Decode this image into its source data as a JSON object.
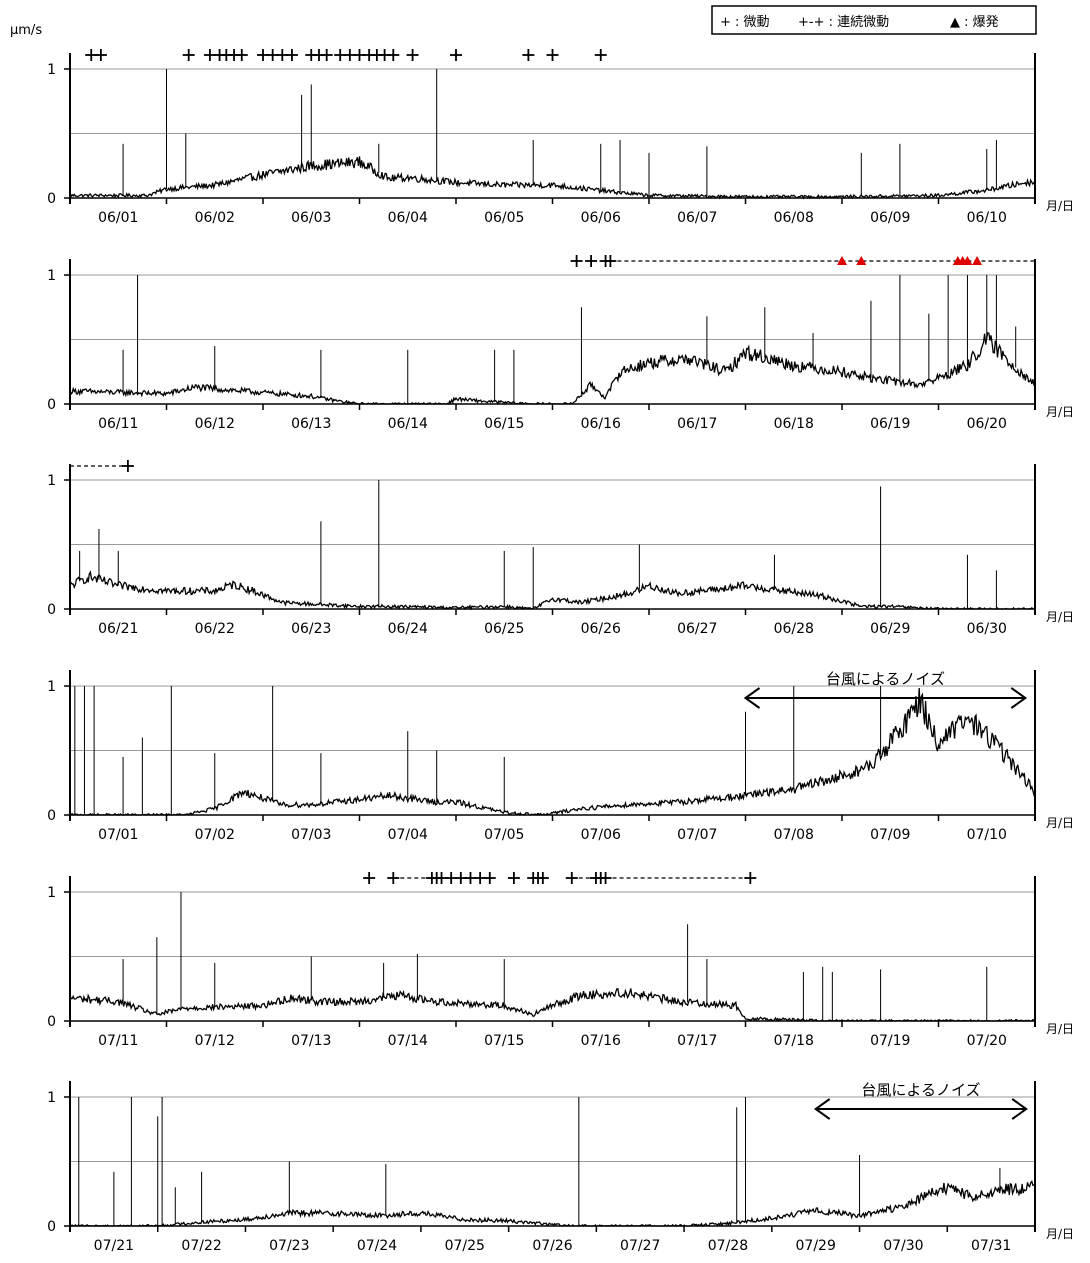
{
  "unit_label": "μm/s",
  "x_unit_label": "月/日",
  "legend": {
    "tremor_label": "+ : 微動",
    "continuous_label": "+-+ : 連続微動",
    "eruption_label": "▲ : 爆発",
    "eruption_color": "#e00000"
  },
  "colors": {
    "trace": "#000000",
    "grid": "#9a9a9a",
    "axis": "#000000",
    "eruption": "#e00000"
  },
  "chart_data": [
    {
      "type": "line",
      "categories": [
        "06/01",
        "06/02",
        "06/03",
        "06/04",
        "06/05",
        "06/06",
        "06/07",
        "06/08",
        "06/09",
        "06/10"
      ],
      "ylim": [
        0,
        1
      ],
      "yticks": [
        0,
        1
      ],
      "grid": [
        0.5,
        1
      ],
      "trace": [
        [
          0,
          0.02
        ],
        [
          0.8,
          0.02
        ],
        [
          1.0,
          0.07
        ],
        [
          1.5,
          0.1
        ],
        [
          2.0,
          0.18
        ],
        [
          2.5,
          0.25
        ],
        [
          3.0,
          0.28
        ],
        [
          3.3,
          0.15
        ],
        [
          3.5,
          0.16
        ],
        [
          4.0,
          0.12
        ],
        [
          4.5,
          0.1
        ],
        [
          5.0,
          0.1
        ],
        [
          5.6,
          0.05
        ],
        [
          6.0,
          0.02
        ],
        [
          7.0,
          0.01
        ],
        [
          8.0,
          0.01
        ],
        [
          9.0,
          0.02
        ],
        [
          9.5,
          0.06
        ],
        [
          9.9,
          0.12
        ],
        [
          10,
          0.12
        ]
      ],
      "spikes": [
        [
          0.55,
          0.42
        ],
        [
          1.0,
          1.0
        ],
        [
          1.2,
          0.5
        ],
        [
          2.4,
          0.8
        ],
        [
          2.5,
          0.88
        ],
        [
          3.2,
          0.42
        ],
        [
          3.8,
          1.0
        ],
        [
          4.8,
          0.45
        ],
        [
          5.5,
          0.42
        ],
        [
          5.7,
          0.45
        ],
        [
          6.0,
          0.35
        ],
        [
          6.6,
          0.4
        ],
        [
          8.2,
          0.35
        ],
        [
          8.6,
          0.42
        ],
        [
          9.5,
          0.38
        ],
        [
          9.6,
          0.45
        ]
      ],
      "tremors": [
        0.22,
        0.32,
        1.23,
        1.45,
        1.55,
        1.62,
        1.7,
        1.78,
        2.0,
        2.1,
        2.2,
        2.3,
        2.5,
        2.58,
        2.66,
        2.8,
        2.9,
        3.0,
        3.1,
        3.18,
        3.26,
        3.35,
        3.55,
        4.0,
        4.75,
        5.0,
        5.5
      ],
      "continuous": [],
      "eruptions": []
    },
    {
      "type": "line",
      "categories": [
        "06/11",
        "06/12",
        "06/13",
        "06/14",
        "06/15",
        "06/16",
        "06/17",
        "06/18",
        "06/19",
        "06/20"
      ],
      "ylim": [
        0,
        1
      ],
      "yticks": [
        0,
        1
      ],
      "grid": [
        0.5,
        1
      ],
      "trace": [
        [
          0,
          0.1
        ],
        [
          1.0,
          0.08
        ],
        [
          1.3,
          0.13
        ],
        [
          1.8,
          0.1
        ],
        [
          2.5,
          0.06
        ],
        [
          2.8,
          0.02
        ],
        [
          3.0,
          0.0
        ],
        [
          3.9,
          0.0
        ],
        [
          4.0,
          0.04
        ],
        [
          4.3,
          0.02
        ],
        [
          4.8,
          0.0
        ],
        [
          5.2,
          0.0
        ],
        [
          5.4,
          0.15
        ],
        [
          5.55,
          0.05
        ],
        [
          5.7,
          0.25
        ],
        [
          6.0,
          0.32
        ],
        [
          6.4,
          0.35
        ],
        [
          6.8,
          0.25
        ],
        [
          7.0,
          0.4
        ],
        [
          7.5,
          0.3
        ],
        [
          8.0,
          0.25
        ],
        [
          8.3,
          0.2
        ],
        [
          8.8,
          0.15
        ],
        [
          9.0,
          0.2
        ],
        [
          9.3,
          0.3
        ],
        [
          9.5,
          0.5
        ],
        [
          9.7,
          0.35
        ],
        [
          10,
          0.15
        ]
      ],
      "spikes": [
        [
          0.55,
          0.42
        ],
        [
          0.7,
          1.0
        ],
        [
          1.5,
          0.45
        ],
        [
          2.6,
          0.42
        ],
        [
          3.5,
          0.42
        ],
        [
          4.4,
          0.42
        ],
        [
          4.6,
          0.42
        ],
        [
          5.3,
          0.75
        ],
        [
          6.6,
          0.68
        ],
        [
          7.2,
          0.75
        ],
        [
          7.7,
          0.55
        ],
        [
          8.3,
          0.8
        ],
        [
          8.6,
          1.0
        ],
        [
          8.9,
          0.7
        ],
        [
          9.1,
          1.0
        ],
        [
          9.3,
          1.0
        ],
        [
          9.5,
          1.0
        ],
        [
          9.6,
          1.0
        ],
        [
          9.8,
          0.6
        ]
      ],
      "tremors": [
        5.25,
        5.4,
        5.55,
        5.6
      ],
      "continuous": [
        [
          5.6,
          10
        ]
      ],
      "eruptions": [
        8.0,
        8.2,
        9.2,
        9.25,
        9.3,
        9.4
      ]
    },
    {
      "type": "line",
      "categories": [
        "06/21",
        "06/22",
        "06/23",
        "06/24",
        "06/25",
        "06/26",
        "06/27",
        "06/28",
        "06/29",
        "06/30"
      ],
      "ylim": [
        0,
        1
      ],
      "yticks": [
        0,
        1
      ],
      "grid": [
        0.5,
        1
      ],
      "trace": [
        [
          0,
          0.18
        ],
        [
          0.2,
          0.25
        ],
        [
          0.5,
          0.18
        ],
        [
          1.0,
          0.14
        ],
        [
          1.5,
          0.14
        ],
        [
          1.7,
          0.19
        ],
        [
          1.9,
          0.14
        ],
        [
          2.2,
          0.05
        ],
        [
          3.0,
          0.02
        ],
        [
          3.3,
          0.02
        ],
        [
          4.0,
          0.01
        ],
        [
          4.5,
          0.02
        ],
        [
          4.8,
          0.0
        ],
        [
          5.0,
          0.08
        ],
        [
          5.3,
          0.05
        ],
        [
          5.8,
          0.12
        ],
        [
          6.0,
          0.18
        ],
        [
          6.3,
          0.12
        ],
        [
          6.8,
          0.16
        ],
        [
          7.0,
          0.18
        ],
        [
          7.3,
          0.15
        ],
        [
          7.8,
          0.1
        ],
        [
          8.2,
          0.02
        ],
        [
          8.5,
          0.02
        ],
        [
          9.0,
          0.0
        ],
        [
          10,
          0.0
        ]
      ],
      "spikes": [
        [
          0.1,
          0.45
        ],
        [
          0.3,
          0.62
        ],
        [
          0.5,
          0.45
        ],
        [
          2.6,
          0.68
        ],
        [
          3.2,
          1.0
        ],
        [
          4.5,
          0.45
        ],
        [
          4.8,
          0.48
        ],
        [
          5.9,
          0.5
        ],
        [
          7.3,
          0.42
        ],
        [
          8.4,
          0.95
        ],
        [
          9.3,
          0.42
        ],
        [
          9.6,
          0.3
        ]
      ],
      "tremors": [
        0.6
      ],
      "continuous": [
        [
          0,
          0.6
        ]
      ],
      "eruptions": []
    },
    {
      "type": "line",
      "categories": [
        "07/01",
        "07/02",
        "07/03",
        "07/04",
        "07/05",
        "07/06",
        "07/07",
        "07/08",
        "07/09",
        "07/10"
      ],
      "ylim": [
        0,
        1
      ],
      "yticks": [
        0,
        1
      ],
      "grid": [
        0.5,
        1
      ],
      "trace": [
        [
          0,
          0.0
        ],
        [
          1.2,
          0.0
        ],
        [
          1.5,
          0.05
        ],
        [
          1.8,
          0.18
        ],
        [
          2.2,
          0.08
        ],
        [
          2.5,
          0.08
        ],
        [
          3.0,
          0.12
        ],
        [
          3.3,
          0.15
        ],
        [
          3.8,
          0.1
        ],
        [
          4.0,
          0.1
        ],
        [
          4.5,
          0.02
        ],
        [
          4.9,
          0.0
        ],
        [
          5.3,
          0.05
        ],
        [
          5.8,
          0.08
        ],
        [
          6.3,
          0.1
        ],
        [
          7.0,
          0.15
        ],
        [
          7.5,
          0.2
        ],
        [
          8.0,
          0.3
        ],
        [
          8.3,
          0.38
        ],
        [
          8.6,
          0.65
        ],
        [
          8.8,
          0.9
        ],
        [
          9.0,
          0.55
        ],
        [
          9.3,
          0.75
        ],
        [
          9.6,
          0.55
        ],
        [
          10,
          0.18
        ]
      ],
      "spikes": [
        [
          0.05,
          1.0
        ],
        [
          0.15,
          1.0
        ],
        [
          0.25,
          1.0
        ],
        [
          0.55,
          0.45
        ],
        [
          0.75,
          0.6
        ],
        [
          1.05,
          1.0
        ],
        [
          1.5,
          0.48
        ],
        [
          2.1,
          1.0
        ],
        [
          2.6,
          0.48
        ],
        [
          3.5,
          0.65
        ],
        [
          3.8,
          0.5
        ],
        [
          4.5,
          0.45
        ],
        [
          7.0,
          0.8
        ],
        [
          7.5,
          1.0
        ],
        [
          8.4,
          1.0
        ]
      ],
      "tremors": [],
      "continuous": [],
      "eruptions": [],
      "annotation": {
        "text": "台風によるノイズ",
        "x0": 7.0,
        "x1": 9.9
      }
    },
    {
      "type": "line",
      "categories": [
        "07/11",
        "07/12",
        "07/13",
        "07/14",
        "07/15",
        "07/16",
        "07/17",
        "07/18",
        "07/19",
        "07/20"
      ],
      "ylim": [
        0,
        1
      ],
      "yticks": [
        0,
        1
      ],
      "grid": [
        0.5,
        1
      ],
      "trace": [
        [
          0,
          0.18
        ],
        [
          0.5,
          0.15
        ],
        [
          0.9,
          0.05
        ],
        [
          1.2,
          0.1
        ],
        [
          2.0,
          0.12
        ],
        [
          2.3,
          0.18
        ],
        [
          2.6,
          0.15
        ],
        [
          3.0,
          0.15
        ],
        [
          3.4,
          0.2
        ],
        [
          3.8,
          0.15
        ],
        [
          4.5,
          0.12
        ],
        [
          4.8,
          0.05
        ],
        [
          5.0,
          0.12
        ],
        [
          5.3,
          0.2
        ],
        [
          5.8,
          0.22
        ],
        [
          6.3,
          0.15
        ],
        [
          6.9,
          0.12
        ],
        [
          7.0,
          0.02
        ],
        [
          8.0,
          0.0
        ],
        [
          10,
          0.0
        ]
      ],
      "spikes": [
        [
          0.55,
          0.48
        ],
        [
          0.9,
          0.65
        ],
        [
          1.15,
          1.0
        ],
        [
          1.5,
          0.45
        ],
        [
          2.5,
          0.5
        ],
        [
          3.25,
          0.45
        ],
        [
          3.6,
          0.52
        ],
        [
          4.5,
          0.48
        ],
        [
          6.4,
          0.75
        ],
        [
          6.6,
          0.48
        ],
        [
          7.6,
          0.38
        ],
        [
          7.8,
          0.42
        ],
        [
          7.9,
          0.38
        ],
        [
          8.4,
          0.4
        ],
        [
          9.5,
          0.42
        ]
      ],
      "tremors": [
        3.1,
        3.35,
        3.75,
        3.8,
        3.85,
        3.95,
        4.05,
        4.15,
        4.25,
        4.35,
        4.6,
        4.8,
        4.85,
        4.9,
        5.2,
        5.45,
        5.5,
        5.55,
        7.05
      ],
      "continuous": [
        [
          3.35,
          3.75
        ],
        [
          5.2,
          5.45
        ],
        [
          5.55,
          7.05
        ]
      ],
      "eruptions": []
    },
    {
      "type": "line",
      "categories": [
        "07/21",
        "07/22",
        "07/23",
        "07/24",
        "07/25",
        "07/26",
        "07/27",
        "07/28",
        "07/29",
        "07/30",
        "07/31"
      ],
      "ylim": [
        0,
        1
      ],
      "yticks": [
        0,
        1
      ],
      "grid": [
        0.5,
        1
      ],
      "trace": [
        [
          0,
          0.0
        ],
        [
          1.0,
          0.0
        ],
        [
          1.5,
          0.03
        ],
        [
          2.0,
          0.05
        ],
        [
          2.5,
          0.1
        ],
        [
          3.0,
          0.1
        ],
        [
          3.5,
          0.08
        ],
        [
          4.0,
          0.1
        ],
        [
          4.5,
          0.05
        ],
        [
          5.0,
          0.04
        ],
        [
          5.7,
          0.0
        ],
        [
          7.0,
          0.0
        ],
        [
          7.5,
          0.02
        ],
        [
          8.0,
          0.06
        ],
        [
          8.5,
          0.12
        ],
        [
          9.0,
          0.08
        ],
        [
          9.5,
          0.15
        ],
        [
          9.8,
          0.25
        ],
        [
          10.0,
          0.3
        ],
        [
          10.3,
          0.22
        ],
        [
          10.6,
          0.28
        ],
        [
          11,
          0.3
        ]
      ],
      "spikes": [
        [
          0.1,
          1.0
        ],
        [
          0.5,
          0.42
        ],
        [
          0.7,
          1.0
        ],
        [
          1.0,
          0.85
        ],
        [
          1.05,
          1.0
        ],
        [
          1.2,
          0.3
        ],
        [
          1.5,
          0.42
        ],
        [
          2.5,
          0.5
        ],
        [
          3.6,
          0.48
        ],
        [
          5.8,
          1.0
        ],
        [
          7.6,
          0.92
        ],
        [
          7.7,
          1.0
        ],
        [
          9.0,
          0.55
        ],
        [
          10.6,
          0.45
        ]
      ],
      "tremors": [],
      "continuous": [],
      "eruptions": [],
      "annotation": {
        "text": "台風によるノイズ",
        "x0": 8.5,
        "x1": 10.9
      }
    }
  ]
}
